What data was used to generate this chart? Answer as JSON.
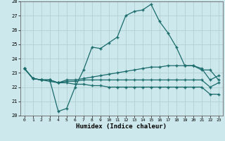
{
  "xlabel": "Humidex (Indice chaleur)",
  "xlim": [
    -0.5,
    23.5
  ],
  "ylim": [
    20,
    28
  ],
  "yticks": [
    20,
    21,
    22,
    23,
    24,
    25,
    26,
    27,
    28
  ],
  "xticks": [
    0,
    1,
    2,
    3,
    4,
    5,
    6,
    7,
    8,
    9,
    10,
    11,
    12,
    13,
    14,
    15,
    16,
    17,
    18,
    19,
    20,
    21,
    22,
    23
  ],
  "bg_color": "#cde8ec",
  "grid_color": "#aacccc",
  "line_color": "#1a6b6b",
  "line1": [
    23.3,
    22.6,
    22.5,
    22.5,
    20.3,
    20.5,
    22.0,
    23.2,
    24.8,
    24.7,
    25.1,
    25.5,
    27.0,
    27.3,
    27.4,
    27.8,
    26.6,
    25.8,
    24.8,
    23.5,
    23.5,
    23.2,
    23.2,
    22.5
  ],
  "line2": [
    23.3,
    22.6,
    22.5,
    22.5,
    22.3,
    22.5,
    22.5,
    22.6,
    22.7,
    22.8,
    22.9,
    23.0,
    23.1,
    23.2,
    23.3,
    23.4,
    23.4,
    23.5,
    23.5,
    23.5,
    23.5,
    23.3,
    22.5,
    22.8
  ],
  "line3": [
    23.3,
    22.6,
    22.5,
    22.4,
    22.3,
    22.4,
    22.4,
    22.5,
    22.5,
    22.5,
    22.5,
    22.5,
    22.5,
    22.5,
    22.5,
    22.5,
    22.5,
    22.5,
    22.5,
    22.5,
    22.5,
    22.5,
    22.0,
    22.3
  ],
  "line4": [
    23.3,
    22.6,
    22.5,
    22.5,
    22.3,
    22.3,
    22.2,
    22.2,
    22.1,
    22.1,
    22.0,
    22.0,
    22.0,
    22.0,
    22.0,
    22.0,
    22.0,
    22.0,
    22.0,
    22.0,
    22.0,
    22.0,
    21.5,
    21.5
  ]
}
